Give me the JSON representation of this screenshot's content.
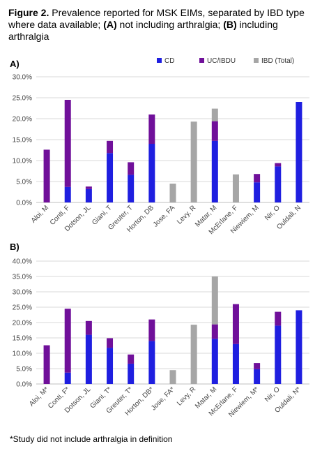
{
  "caption": {
    "figure_label": "Figure 2.",
    "text_1": " Prevalence reported for MSK EIMs, separated by IBD type where data available; ",
    "a_label": "(A)",
    "text_2": " not including arthralgia; ",
    "b_label": "(B)",
    "text_3": " including arthralgia"
  },
  "footnote": "*Study did not include arthralgia in definition",
  "chart_data": [
    {
      "type": "bar",
      "stacked": true,
      "panel_label": "A)",
      "categories": [
        "Aloi, M",
        "Conti, F",
        "Dotson, JL",
        "Giani, T",
        "Greuter, T",
        "Horton, DB",
        "Jose, FA",
        "Levy, R",
        "Matar, M",
        "McErlane, F",
        "Niewiem, M",
        "Nir, O",
        "Ouldali, N"
      ],
      "series": [
        {
          "name": "CD",
          "color": "#1f1fe0",
          "values": [
            0,
            3.7,
            3.2,
            11.8,
            6.6,
            14.0,
            0,
            0,
            14.7,
            0,
            4.8,
            8.6,
            24.0
          ]
        },
        {
          "name": "UC/IBDU",
          "color": "#70109a",
          "values": [
            12.6,
            20.8,
            0.6,
            2.9,
            3.0,
            7.0,
            0,
            0,
            4.7,
            0,
            2.0,
            0.8,
            0
          ]
        },
        {
          "name": "IBD (Total)",
          "color": "#a6a6a6",
          "values": [
            0,
            0,
            0,
            0,
            0,
            0,
            4.5,
            19.3,
            3.0,
            6.7,
            0,
            0,
            0
          ]
        }
      ],
      "ylim": [
        0,
        30
      ],
      "yticks": [
        "0.0%",
        "5.0%",
        "10.0%",
        "15.0%",
        "20.0%",
        "25.0%",
        "30.0%"
      ],
      "grid": true,
      "legend": "top-right"
    },
    {
      "type": "bar",
      "stacked": true,
      "panel_label": "B)",
      "categories": [
        "Aloi, M*",
        "Conti, F*",
        "Dotson, JL",
        "Giani, T*",
        "Greuter, T*",
        "Horton, DB*",
        "Jose, FA*",
        "Levy, R",
        "Matar, M",
        "McErlane, F",
        "Niewiem, M*",
        "Nir, O",
        "Ouldali, N*"
      ],
      "series": [
        {
          "name": "CD",
          "color": "#1f1fe0",
          "values": [
            0,
            3.7,
            16.0,
            11.8,
            6.6,
            14.0,
            0,
            0,
            14.7,
            13.0,
            4.8,
            19.0,
            24.0
          ]
        },
        {
          "name": "UC/IBDU",
          "color": "#70109a",
          "values": [
            12.6,
            20.8,
            4.5,
            3.1,
            3.0,
            7.0,
            0,
            0,
            4.7,
            13.0,
            2.0,
            4.5,
            0
          ]
        },
        {
          "name": "IBD (Total)",
          "color": "#a6a6a6",
          "values": [
            0,
            0,
            0,
            0,
            0,
            0,
            4.5,
            19.3,
            15.6,
            0,
            0,
            0,
            0
          ]
        }
      ],
      "ylim": [
        0,
        40
      ],
      "yticks": [
        "0.0%",
        "5.0%",
        "10.0%",
        "15.0%",
        "20.0%",
        "25.0%",
        "30.0%",
        "35.0%",
        "40.0%"
      ],
      "grid": true
    }
  ]
}
